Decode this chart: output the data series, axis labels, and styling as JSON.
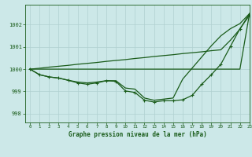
{
  "title": "Graphe pression niveau de la mer (hPa)",
  "background_color": "#cce8e8",
  "grid_color": "#b0d0d0",
  "line_color": "#1a5c1a",
  "xlim": [
    -0.5,
    23
  ],
  "ylim": [
    997.6,
    1002.9
  ],
  "yticks": [
    998,
    999,
    1000,
    1001,
    1002
  ],
  "xticks": [
    0,
    1,
    2,
    3,
    4,
    5,
    6,
    7,
    8,
    9,
    10,
    11,
    12,
    13,
    14,
    15,
    16,
    17,
    18,
    19,
    20,
    21,
    22,
    23
  ],
  "line_flat": [
    1000.0,
    1000.0,
    1000.0,
    1000.0,
    1000.0,
    1000.0,
    1000.0,
    1000.0,
    1000.0,
    1000.0,
    1000.0,
    1000.0,
    1000.0,
    1000.0,
    1000.0,
    1000.0,
    1000.0,
    1000.0,
    1000.0,
    1000.0,
    1000.0,
    1000.0,
    1000.0,
    1002.5
  ],
  "line_diagonal": [
    1000.0,
    1000.04,
    1000.09,
    1000.13,
    1000.17,
    1000.22,
    1000.26,
    1000.3,
    1000.35,
    1000.39,
    1000.43,
    1000.48,
    1000.52,
    1000.57,
    1000.61,
    1000.65,
    1000.7,
    1000.74,
    1000.78,
    1000.83,
    1000.87,
    1001.3,
    1001.8,
    1002.5
  ],
  "line_smooth": [
    1000.0,
    999.75,
    999.65,
    999.6,
    999.5,
    999.42,
    999.38,
    999.42,
    999.48,
    999.48,
    999.15,
    999.1,
    998.7,
    998.6,
    998.65,
    998.7,
    999.55,
    1000.05,
    1000.55,
    1001.05,
    1001.5,
    1001.82,
    1002.05,
    1002.5
  ],
  "line_markers": [
    1000.0,
    999.75,
    999.65,
    999.6,
    999.5,
    999.38,
    999.32,
    999.38,
    999.48,
    999.45,
    999.02,
    998.95,
    998.6,
    998.52,
    998.58,
    998.58,
    998.62,
    998.82,
    999.32,
    999.75,
    1000.22,
    1001.02,
    1001.82,
    1002.42
  ]
}
